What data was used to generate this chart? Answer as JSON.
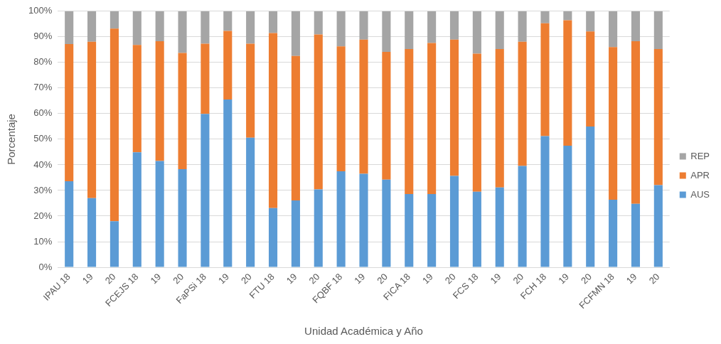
{
  "chart_data": {
    "type": "bar",
    "stacked": true,
    "xlabel": "Unidad Académica y Año",
    "ylabel": "Porcentaje",
    "categories": [
      "IPAU 18",
      "19",
      "20",
      "FCEJS 18",
      "19",
      "20",
      "FaPSi 18",
      "19",
      "20",
      "FTU 18",
      "19",
      "20",
      "FQBF 18",
      "19",
      "20",
      "FICA 18",
      "19",
      "20",
      "FCS 18",
      "19",
      "20",
      "FCH 18",
      "19",
      "20",
      "FCFMN 18",
      "19",
      "20"
    ],
    "series": [
      {
        "name": "AUS",
        "color": "#5b9bd5",
        "values": [
          33.6,
          27.0,
          18.0,
          44.9,
          41.5,
          38.3,
          59.9,
          65.5,
          50.6,
          23.1,
          26.1,
          30.4,
          37.5,
          36.5,
          34.2,
          28.6,
          28.6,
          35.7,
          29.5,
          31.2,
          39.6,
          51.2,
          47.5,
          55.0,
          26.4,
          24.8,
          32.1
        ]
      },
      {
        "name": "APR",
        "color": "#ed7d31",
        "values": [
          53.6,
          61.1,
          75.2,
          41.9,
          46.8,
          45.4,
          27.4,
          26.8,
          36.7,
          68.4,
          56.4,
          60.5,
          48.8,
          52.4,
          49.9,
          56.6,
          59.0,
          53.2,
          53.9,
          54.0,
          48.5,
          44.1,
          49.0,
          37.1,
          59.6,
          63.5,
          53.1
        ]
      },
      {
        "name": "REP",
        "color": "#a5a5a5",
        "values": [
          12.8,
          11.9,
          6.8,
          13.2,
          11.7,
          16.3,
          12.7,
          7.7,
          12.7,
          8.5,
          17.5,
          9.1,
          13.7,
          11.1,
          15.9,
          14.8,
          12.4,
          11.1,
          16.6,
          14.8,
          11.9,
          4.7,
          3.5,
          7.9,
          14.0,
          11.7,
          14.8
        ]
      }
    ],
    "ylim": [
      0,
      100
    ],
    "yticks": [
      {
        "value": 0,
        "label": "0%"
      },
      {
        "value": 10,
        "label": "10%"
      },
      {
        "value": 20,
        "label": "20%"
      },
      {
        "value": 30,
        "label": "30%"
      },
      {
        "value": 40,
        "label": "40%"
      },
      {
        "value": 50,
        "label": "50%"
      },
      {
        "value": 60,
        "label": "60%"
      },
      {
        "value": 70,
        "label": "70%"
      },
      {
        "value": 80,
        "label": "80%"
      },
      {
        "value": 90,
        "label": "90%"
      },
      {
        "value": 100,
        "label": "100%"
      }
    ],
    "grid": "y",
    "legend": "right"
  }
}
